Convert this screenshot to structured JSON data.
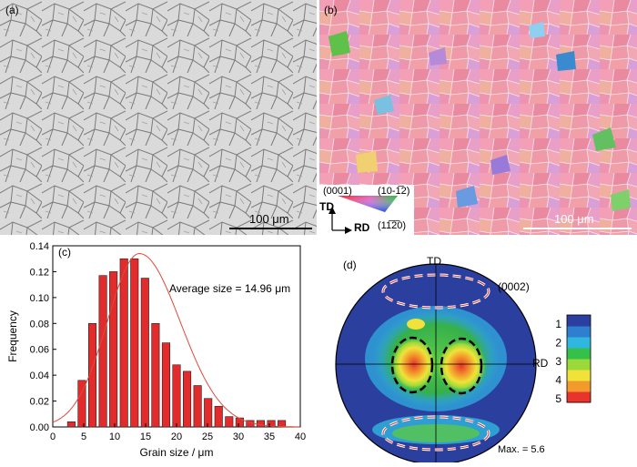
{
  "panels": {
    "a": {
      "label": "(a)",
      "scale_text": "100 μm"
    },
    "b": {
      "label": "(b)",
      "scale_text": "100 μm",
      "legend": {
        "corner_top_left": "(0001)",
        "corner_top_right": "(10‐1̅2)",
        "corner_bottom": "(11̅2̅0)",
        "axis_y": "TD",
        "axis_x": "RD"
      }
    },
    "c": {
      "label": "(c)",
      "annotation": "Average size = 14.96 μm"
    },
    "d": {
      "label": "(d)",
      "top": "TD",
      "right": "RD",
      "plane": "(0002)",
      "max_text": "Max. = 5.6",
      "colorbar_ticks": [
        "1",
        "2",
        "3",
        "4",
        "5"
      ],
      "colorbar_colors": [
        "#2b3fa0",
        "#2f7fd0",
        "#2fb7e0",
        "#35c04a",
        "#9bd93a",
        "#f0e23a",
        "#f29a2c",
        "#e8342a"
      ]
    }
  },
  "colors": {
    "bar": "#e32b2b",
    "curve": "#e04a3a",
    "ellipse_white": "#ffffff",
    "ellipse_black": "#000000"
  },
  "chart_data": {
    "type": "bar",
    "title": "",
    "xlabel": "Grain size / μm",
    "ylabel": "Frequency",
    "xlim": [
      0,
      40
    ],
    "ylim": [
      0,
      0.14
    ],
    "xticks": [
      0,
      5,
      10,
      15,
      20,
      25,
      30,
      35,
      40
    ],
    "yticks": [
      0.0,
      0.02,
      0.04,
      0.06,
      0.08,
      0.1,
      0.12,
      0.14
    ],
    "grid": false,
    "bin_width": 1.6,
    "x": [
      3.0,
      4.7,
      6.4,
      8.1,
      9.8,
      11.5,
      13.2,
      14.9,
      16.6,
      18.3,
      20.0,
      21.7,
      23.4,
      25.1,
      26.8,
      28.5,
      30.2,
      31.9,
      33.6,
      35.3,
      37.0
    ],
    "values": [
      0.004,
      0.036,
      0.08,
      0.117,
      0.12,
      0.13,
      0.13,
      0.115,
      0.08,
      0.065,
      0.048,
      0.043,
      0.032,
      0.022,
      0.016,
      0.008,
      0.007,
      0.005,
      0.005,
      0.005,
      0.005
    ],
    "fit_curve": {
      "type": "lognormal-like",
      "peak_x": 14.0,
      "peak_y": 0.134
    }
  }
}
